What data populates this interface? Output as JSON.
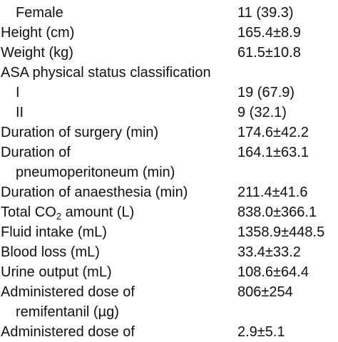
{
  "table": {
    "rows": [
      {
        "label": "Female",
        "value": "11 (39.3)"
      },
      {
        "label": "Height (cm)",
        "value": "165.4±8.9"
      },
      {
        "label": "Weight (kg)",
        "value": "61.5±10.8"
      },
      {
        "label": "ASA physical status classification"
      },
      {
        "label": "I",
        "value": "19 (67.9)"
      },
      {
        "label": "II",
        "value": "9 (32.1)"
      },
      {
        "label": "Duration of surgery (min)",
        "value": "174.6±42.2"
      },
      {
        "label": "Duration of",
        "value": "164.1±63.1"
      },
      {
        "label": "pneumoperitoneum (min)"
      },
      {
        "label": "Duration of anaesthesia (min)",
        "value": "211.4±41.6"
      },
      {
        "label": "Total CO",
        "label_sub": "2",
        "label_rest": " amount (L)",
        "value": "838.0±366.1"
      },
      {
        "label": "Fluid intake (mL)",
        "value": "1358.9±448.5"
      },
      {
        "label": "Blood loss (mL)",
        "value": "33.4±33.2"
      },
      {
        "label": "Urine output (mL)",
        "value": "108.6±64.4"
      },
      {
        "label": "Administered dose of",
        "value": "806±254"
      },
      {
        "label": "remifentanil (µg)"
      },
      {
        "label": "Administered dose of",
        "value": "2.9±5.1"
      }
    ]
  }
}
